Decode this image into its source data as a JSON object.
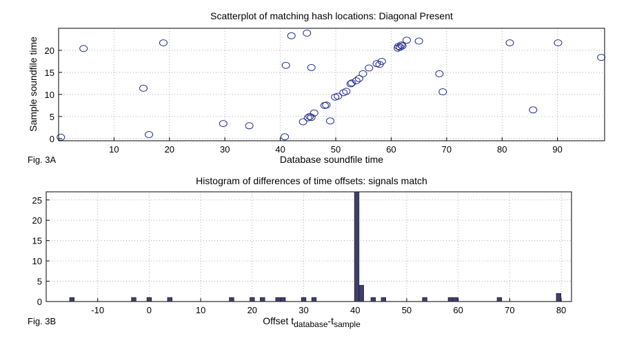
{
  "chart_data": [
    {
      "type": "scatter",
      "title": "Scatterplot of matching hash locations:  Diagonal Present",
      "xlabel": "Database soundfile time",
      "ylabel": "Sample soundfile time",
      "figure_label": "Fig. 3A",
      "xlim": [
        0,
        98.5
      ],
      "ylim": [
        -0.5,
        25
      ],
      "xticks": [
        10,
        20,
        30,
        40,
        50,
        60,
        70,
        80,
        90
      ],
      "yticks": [
        0,
        5,
        10,
        15,
        20
      ],
      "grid": true,
      "marker": "open-circle",
      "color": "#1f2a8c",
      "points": [
        [
          0.4,
          0.3
        ],
        [
          4.5,
          20.4
        ],
        [
          15.3,
          11.4
        ],
        [
          16.3,
          0.9
        ],
        [
          18.9,
          21.7
        ],
        [
          29.7,
          3.4
        ],
        [
          34.4,
          2.9
        ],
        [
          40.8,
          0.4
        ],
        [
          41.0,
          16.6
        ],
        [
          42.0,
          23.3
        ],
        [
          44.8,
          23.9
        ],
        [
          45.6,
          16.1
        ],
        [
          44.1,
          3.8
        ],
        [
          45.0,
          4.7
        ],
        [
          45.3,
          5.0
        ],
        [
          45.6,
          4.8
        ],
        [
          46.1,
          5.8
        ],
        [
          48.0,
          7.5
        ],
        [
          48.3,
          7.6
        ],
        [
          49.0,
          4.0
        ],
        [
          49.9,
          9.4
        ],
        [
          50.4,
          9.6
        ],
        [
          51.4,
          10.4
        ],
        [
          51.9,
          10.7
        ],
        [
          52.7,
          12.4
        ],
        [
          52.9,
          12.6
        ],
        [
          53.7,
          13.1
        ],
        [
          54.2,
          13.6
        ],
        [
          54.9,
          14.7
        ],
        [
          56.0,
          16.0
        ],
        [
          57.4,
          17.0
        ],
        [
          57.9,
          16.8
        ],
        [
          58.3,
          17.5
        ],
        [
          61.2,
          20.5
        ],
        [
          61.3,
          20.9
        ],
        [
          61.6,
          20.7
        ],
        [
          61.8,
          21.2
        ],
        [
          62.0,
          21.0
        ],
        [
          62.8,
          22.3
        ],
        [
          65.0,
          22.1
        ],
        [
          68.7,
          14.7
        ],
        [
          69.3,
          10.6
        ],
        [
          81.4,
          21.7
        ],
        [
          85.6,
          6.5
        ],
        [
          90.1,
          21.7
        ],
        [
          97.9,
          18.4
        ]
      ]
    },
    {
      "type": "bar",
      "title": "Histogram of differences of time offsets: signals match",
      "xlabel": "Offset t",
      "xlabel_sub": "database",
      "xlabel_sep": "-t",
      "xlabel_sub2": "sample",
      "figure_label": "Fig. 3B",
      "xlim": [
        -20,
        82
      ],
      "ylim": [
        0,
        27
      ],
      "xticks": [
        -10,
        0,
        10,
        20,
        30,
        40,
        50,
        60,
        70,
        80
      ],
      "yticks": [
        0,
        5,
        10,
        15,
        20,
        25
      ],
      "grid": true,
      "color": "#3f3f6b",
      "bin_width": 0.9,
      "bins": [
        [
          -15,
          1
        ],
        [
          -3,
          1
        ],
        [
          0,
          1
        ],
        [
          4,
          1
        ],
        [
          16,
          1
        ],
        [
          20,
          1
        ],
        [
          22,
          1
        ],
        [
          25,
          1
        ],
        [
          26,
          1
        ],
        [
          30,
          1
        ],
        [
          32,
          1
        ],
        [
          40.3,
          27
        ],
        [
          41.2,
          4
        ],
        [
          43.5,
          1
        ],
        [
          45.5,
          1
        ],
        [
          53.5,
          1
        ],
        [
          58.5,
          1
        ],
        [
          59.5,
          1
        ],
        [
          68,
          1
        ],
        [
          79.5,
          2
        ]
      ]
    }
  ]
}
